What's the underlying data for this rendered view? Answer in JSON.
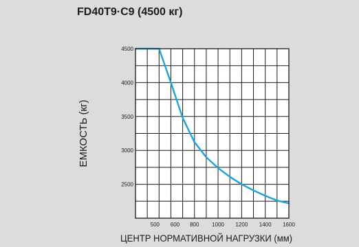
{
  "chart_data": {
    "type": "line",
    "title": "FD40T9·C9 (4500 кг)",
    "xlabel": "ЦЕНТР НОРМАТИВНОЙ НАГРУЗКИ (мм)",
    "ylabel": "ЕМКОСТЬ (кг)",
    "x_ticks": [
      "500",
      "600",
      "800",
      "1000",
      "1200",
      "1400",
      "1600"
    ],
    "y_ticks": [
      "4500",
      "4000",
      "3500",
      "3000",
      "2500"
    ],
    "xlim": [
      300,
      1600
    ],
    "ylim": [
      2000,
      4500
    ],
    "grid": true,
    "colors": {
      "line": "#1aa3dc",
      "grid": "#1a1a1a",
      "background": "#dcdcdc",
      "plot_background": "#ffffff"
    },
    "series": [
      {
        "x": [
          300,
          500,
          600,
          700,
          800,
          900,
          1000,
          1100,
          1200,
          1300,
          1400,
          1500,
          1600
        ],
        "y": [
          4500,
          4500,
          4000,
          3480,
          3120,
          2900,
          2740,
          2610,
          2500,
          2410,
          2330,
          2260,
          2220
        ]
      }
    ]
  }
}
